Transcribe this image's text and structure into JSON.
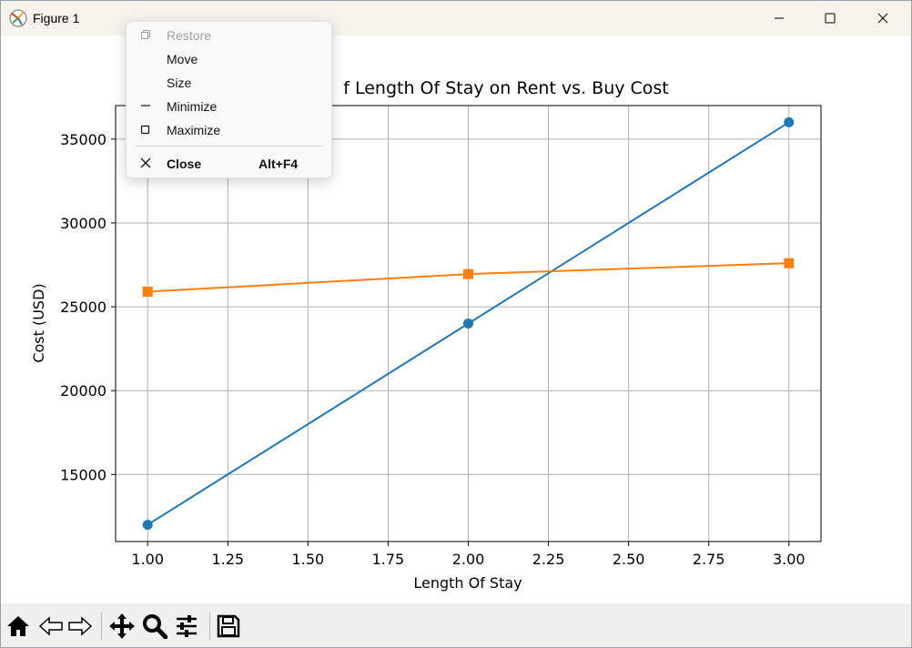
{
  "window": {
    "title": "Figure 1",
    "controls": {
      "minimize": "minimize-icon",
      "maximize": "maximize-icon",
      "close": "close-icon"
    }
  },
  "system_menu": {
    "items": [
      {
        "label": "Restore",
        "icon": "restore-icon",
        "enabled": false
      },
      {
        "label": "Move",
        "icon": "",
        "enabled": true
      },
      {
        "label": "Size",
        "icon": "",
        "enabled": true
      },
      {
        "label": "Minimize",
        "icon": "minimize-icon",
        "enabled": true
      },
      {
        "label": "Maximize",
        "icon": "maximize-icon",
        "enabled": true
      },
      {
        "label": "Close",
        "icon": "close-icon",
        "enabled": true,
        "shortcut": "Alt+F4",
        "bold": true
      }
    ]
  },
  "toolbar": {
    "buttons": [
      "home-icon",
      "back-icon",
      "forward-icon",
      "pan-icon",
      "zoom-icon",
      "configure-subplots-icon",
      "save-icon"
    ]
  },
  "chart_data": {
    "type": "line",
    "title": "f Length Of Stay on Rent vs. Buy Cost",
    "xlabel": "Length Of Stay",
    "ylabel": "Cost (USD)",
    "xlim": [
      0.9,
      3.1
    ],
    "ylim": [
      11000,
      37000
    ],
    "xticks": [
      "1.00",
      "1.25",
      "1.50",
      "1.75",
      "2.00",
      "2.25",
      "2.50",
      "2.75",
      "3.00"
    ],
    "yticks": [
      "15000",
      "20000",
      "25000",
      "30000",
      "35000"
    ],
    "grid": true,
    "series": [
      {
        "x": [
          1,
          2,
          3
        ],
        "values": [
          12000,
          24000,
          36000
        ],
        "color": "#1f77b4",
        "marker": "circle"
      },
      {
        "x": [
          1,
          2,
          3
        ],
        "values": [
          25900,
          26950,
          27600
        ],
        "color": "#ff7f0e",
        "marker": "square"
      }
    ]
  }
}
